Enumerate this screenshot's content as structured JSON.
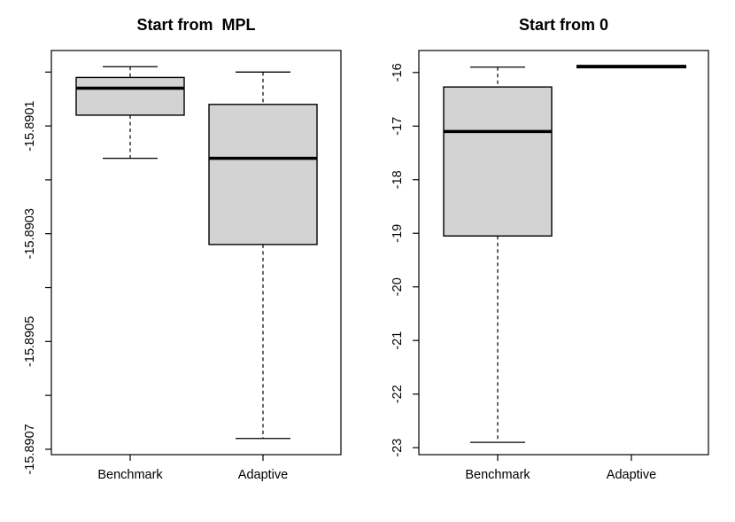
{
  "page": {
    "background": "#ffffff",
    "text_color": "#000000"
  },
  "chart_data": [
    {
      "type": "boxplot",
      "title": "Start from  MPL",
      "categories": [
        "Benchmark",
        "Adaptive"
      ],
      "boxes": [
        {
          "category": "Benchmark",
          "whisker_low": -15.89016,
          "q1": -15.89008,
          "median": -15.89003,
          "q3": -15.89001,
          "whisker_high": -15.88999
        },
        {
          "category": "Adaptive",
          "whisker_low": -15.89068,
          "q1": -15.89032,
          "median": -15.89016,
          "q3": -15.89006,
          "whisker_high": -15.89
        }
      ],
      "ylim": [
        -15.89071,
        -15.88996
      ],
      "yticks": [
        {
          "value": -15.8907,
          "label": "-15.8907"
        },
        {
          "value": -15.8906,
          "label": ""
        },
        {
          "value": -15.8905,
          "label": "-15.8905"
        },
        {
          "value": -15.8904,
          "label": ""
        },
        {
          "value": -15.8903,
          "label": "-15.8903"
        },
        {
          "value": -15.8902,
          "label": ""
        },
        {
          "value": -15.8901,
          "label": "-15.8901"
        },
        {
          "value": -15.89,
          "label": ""
        }
      ],
      "legend": "none",
      "grid": "off",
      "box_fill": "#d3d3d3",
      "line_color": "#000000",
      "whisker_style": "dashed"
    },
    {
      "type": "boxplot",
      "title": "Start from 0",
      "categories": [
        "Benchmark",
        "Adaptive"
      ],
      "boxes": [
        {
          "category": "Benchmark",
          "whisker_low": -22.9,
          "q1": -19.05,
          "median": -17.1,
          "q3": -16.27,
          "whisker_high": -15.9
        },
        {
          "category": "Adaptive",
          "whisker_low": -15.89,
          "q1": -15.89,
          "median": -15.89,
          "q3": -15.89,
          "whisker_high": -15.89
        }
      ],
      "ylim": [
        -23.13,
        -15.59
      ],
      "yticks": [
        {
          "value": -23,
          "label": "-23"
        },
        {
          "value": -22,
          "label": "-22"
        },
        {
          "value": -21,
          "label": "-21"
        },
        {
          "value": -20,
          "label": "-20"
        },
        {
          "value": -19,
          "label": "-19"
        },
        {
          "value": -18,
          "label": "-18"
        },
        {
          "value": -17,
          "label": "-17"
        },
        {
          "value": -16,
          "label": "-16"
        }
      ],
      "legend": "none",
      "grid": "off",
      "box_fill": "#d3d3d3",
      "line_color": "#000000",
      "whisker_style": "dashed"
    }
  ]
}
